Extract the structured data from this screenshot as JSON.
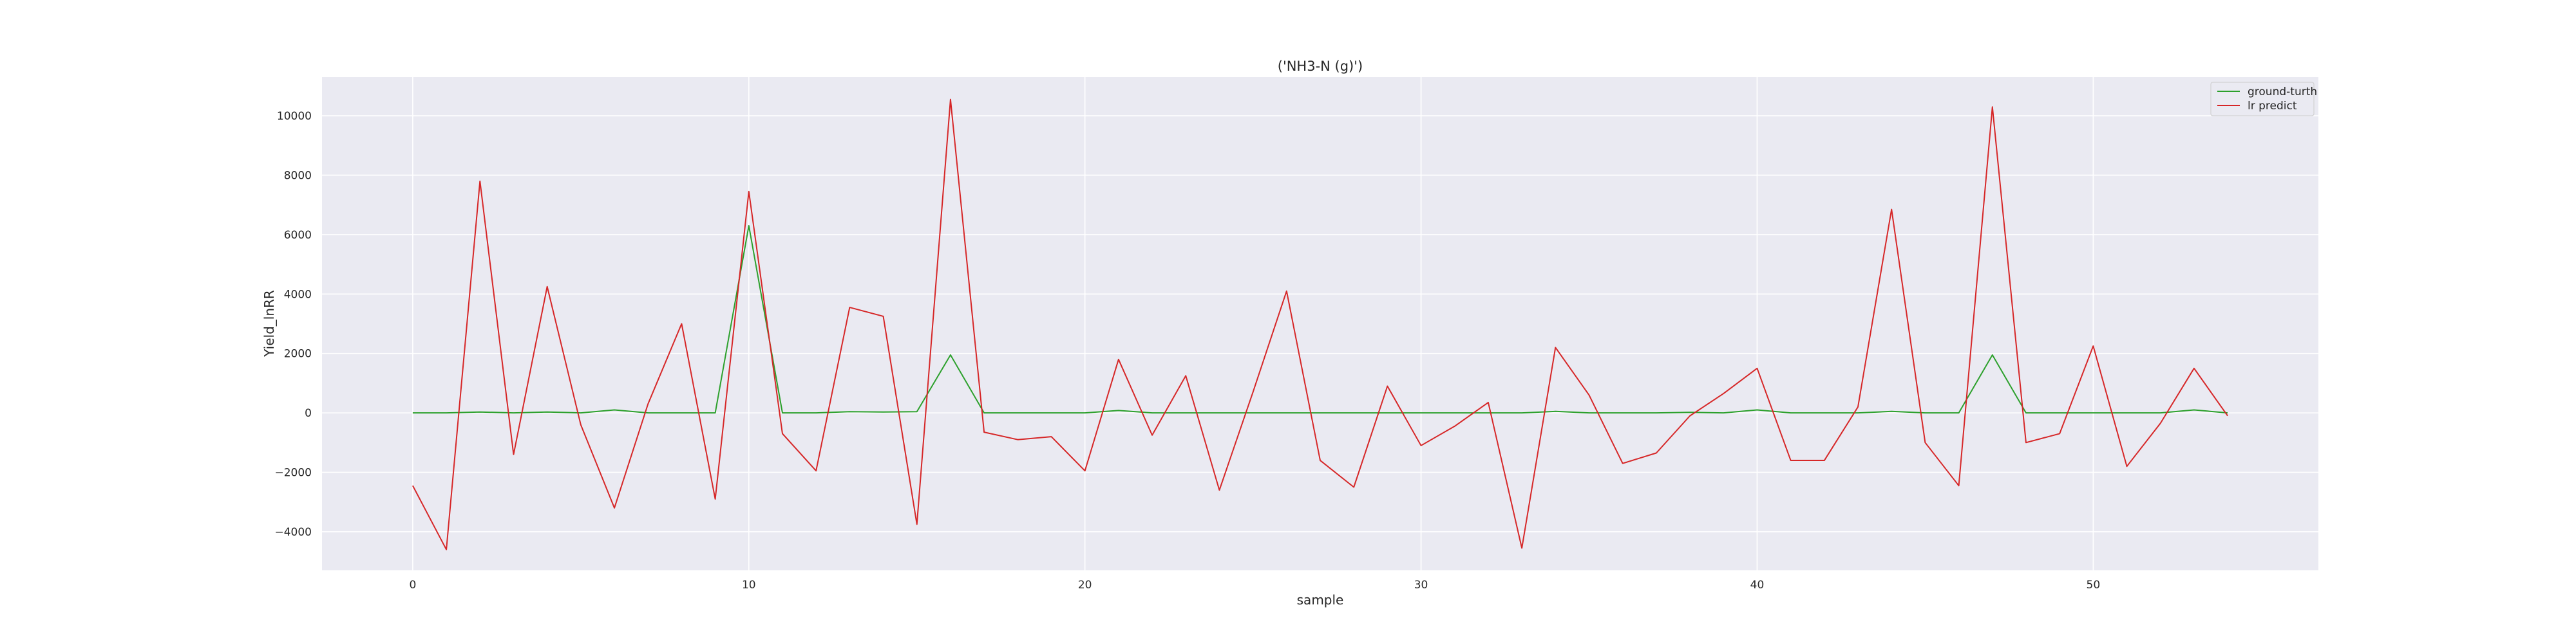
{
  "chart_data": {
    "type": "line",
    "title": "('NH3-N (g)')",
    "xlabel": "sample",
    "ylabel": "Yield_lnRR",
    "xlim": [
      -2.7,
      56.7
    ],
    "ylim": [
      -5300,
      11300
    ],
    "x_ticks": [
      0,
      10,
      20,
      30,
      40,
      50
    ],
    "y_ticks": [
      -4000,
      -2000,
      0,
      2000,
      4000,
      6000,
      8000,
      10000
    ],
    "grid": true,
    "legend_position": "top-right",
    "x": [
      0,
      1,
      2,
      3,
      4,
      5,
      6,
      7,
      8,
      9,
      10,
      11,
      12,
      13,
      14,
      15,
      16,
      17,
      18,
      19,
      20,
      21,
      22,
      23,
      24,
      25,
      26,
      27,
      28,
      29,
      30,
      31,
      32,
      33,
      34,
      35,
      36,
      37,
      38,
      39,
      40,
      41,
      42,
      43,
      44,
      45,
      46,
      47,
      48,
      49,
      50,
      51,
      52,
      53,
      54
    ],
    "series": [
      {
        "name": "ground-turth",
        "color": "#2ca02c",
        "values": [
          0,
          0,
          30,
          0,
          30,
          0,
          100,
          0,
          0,
          0,
          6300,
          0,
          0,
          40,
          30,
          40,
          1950,
          0,
          0,
          0,
          0,
          80,
          0,
          0,
          0,
          0,
          0,
          0,
          0,
          0,
          0,
          0,
          0,
          0,
          50,
          0,
          0,
          0,
          20,
          0,
          100,
          0,
          0,
          0,
          50,
          0,
          0,
          1950,
          0,
          0,
          0,
          0,
          0,
          100,
          0
        ]
      },
      {
        "name": "lr predict",
        "color": "#d62728",
        "values": [
          -2450,
          -4600,
          7800,
          -1400,
          4250,
          -400,
          -3200,
          300,
          3000,
          -2900,
          7450,
          -700,
          -1950,
          3550,
          3250,
          -3750,
          10550,
          -650,
          -900,
          -800,
          -1950,
          1800,
          -750,
          1250,
          -2600,
          700,
          4100,
          -1600,
          -2500,
          900,
          -1100,
          -450,
          350,
          -4550,
          2200,
          600,
          -1700,
          -1350,
          -100,
          650,
          1500,
          -1600,
          -1600,
          200,
          6850,
          -1000,
          -2450,
          10300,
          -1000,
          -700,
          2250,
          -1800,
          -350,
          1500,
          -100
        ]
      }
    ]
  }
}
